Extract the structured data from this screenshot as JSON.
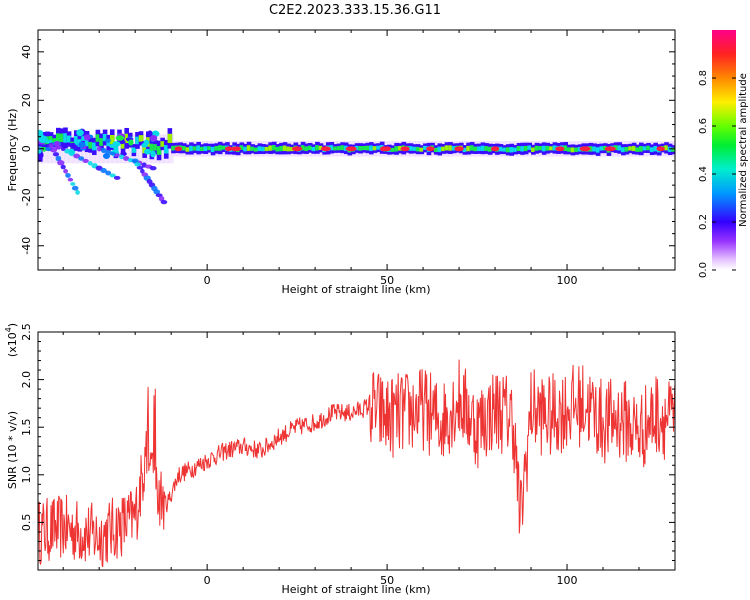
{
  "figure_title": "C2E2.2023.333.15.36.G11",
  "colors": {
    "snr_line": "#ee3333",
    "frame": "#000000"
  },
  "chart_data": [
    {
      "type": "heatmap",
      "xlabel": "Height of straight line (km)",
      "ylabel": "Frequency (Hz)",
      "xlim": [
        -47,
        130
      ],
      "ylim": [
        -50,
        49
      ],
      "xticks": [
        0,
        50,
        100
      ],
      "xtick_labels": [
        "0",
        "50",
        "100"
      ],
      "yticks": [
        -40,
        -20,
        0,
        20,
        40
      ],
      "ytick_labels": [
        "-40",
        "-20",
        "0",
        "20",
        "40"
      ],
      "colormap": "rainbow (white-purple-blue-cyan-green-yellow-red-magenta)",
      "colorbar": {
        "label": "Normalized spectral amplitude",
        "range": [
          0.0,
          1.0
        ],
        "ticks": [
          0.0,
          0.2,
          0.4,
          0.6,
          0.8
        ],
        "tick_labels": [
          "0.0",
          "0.2",
          "0.4",
          "0.6",
          "0.8"
        ]
      },
      "features": {
        "main_band_center_hz": 0,
        "main_band_halfwidth_hz": 3,
        "dispersive_tails_below_zero_x_range": [
          -47,
          -15
        ]
      }
    },
    {
      "type": "line",
      "xlabel": "Height of straight line (km)",
      "ylabel": "SNR (10 * v/v)",
      "scale_label": "(x10",
      "scale_exponent": "4",
      "scale_close": ")",
      "xlim": [
        -47,
        130
      ],
      "ylim": [
        0.0,
        2.5
      ],
      "xticks": [
        0,
        50,
        100
      ],
      "xtick_labels": [
        "0",
        "50",
        "100"
      ],
      "yticks": [
        0.5,
        1.0,
        1.5,
        2.0,
        2.5
      ],
      "ytick_labels": [
        "0.5",
        "1.0",
        "1.5",
        "2.0",
        "2.5"
      ],
      "series": [
        {
          "x": [
            -47,
            -40,
            -35,
            -30,
            -25,
            -20,
            -17,
            -14,
            -11,
            -8,
            -5,
            0,
            5,
            10,
            15,
            20,
            25,
            30,
            35,
            40,
            45,
            50,
            55,
            60,
            65,
            70,
            75,
            80,
            85,
            87,
            90,
            95,
            100,
            105,
            110,
            115,
            120,
            125,
            130
          ],
          "y": [
            0.4,
            0.45,
            0.4,
            0.35,
            0.45,
            0.55,
            1.2,
            0.8,
            0.7,
            1.0,
            1.05,
            1.15,
            1.25,
            1.3,
            1.25,
            1.4,
            1.5,
            1.55,
            1.65,
            1.65,
            1.72,
            1.6,
            1.65,
            1.7,
            1.55,
            1.8,
            1.5,
            1.7,
            1.6,
            0.5,
            1.7,
            1.6,
            1.7,
            1.75,
            1.55,
            1.6,
            1.45,
            1.65,
            1.55
          ]
        }
      ]
    }
  ]
}
